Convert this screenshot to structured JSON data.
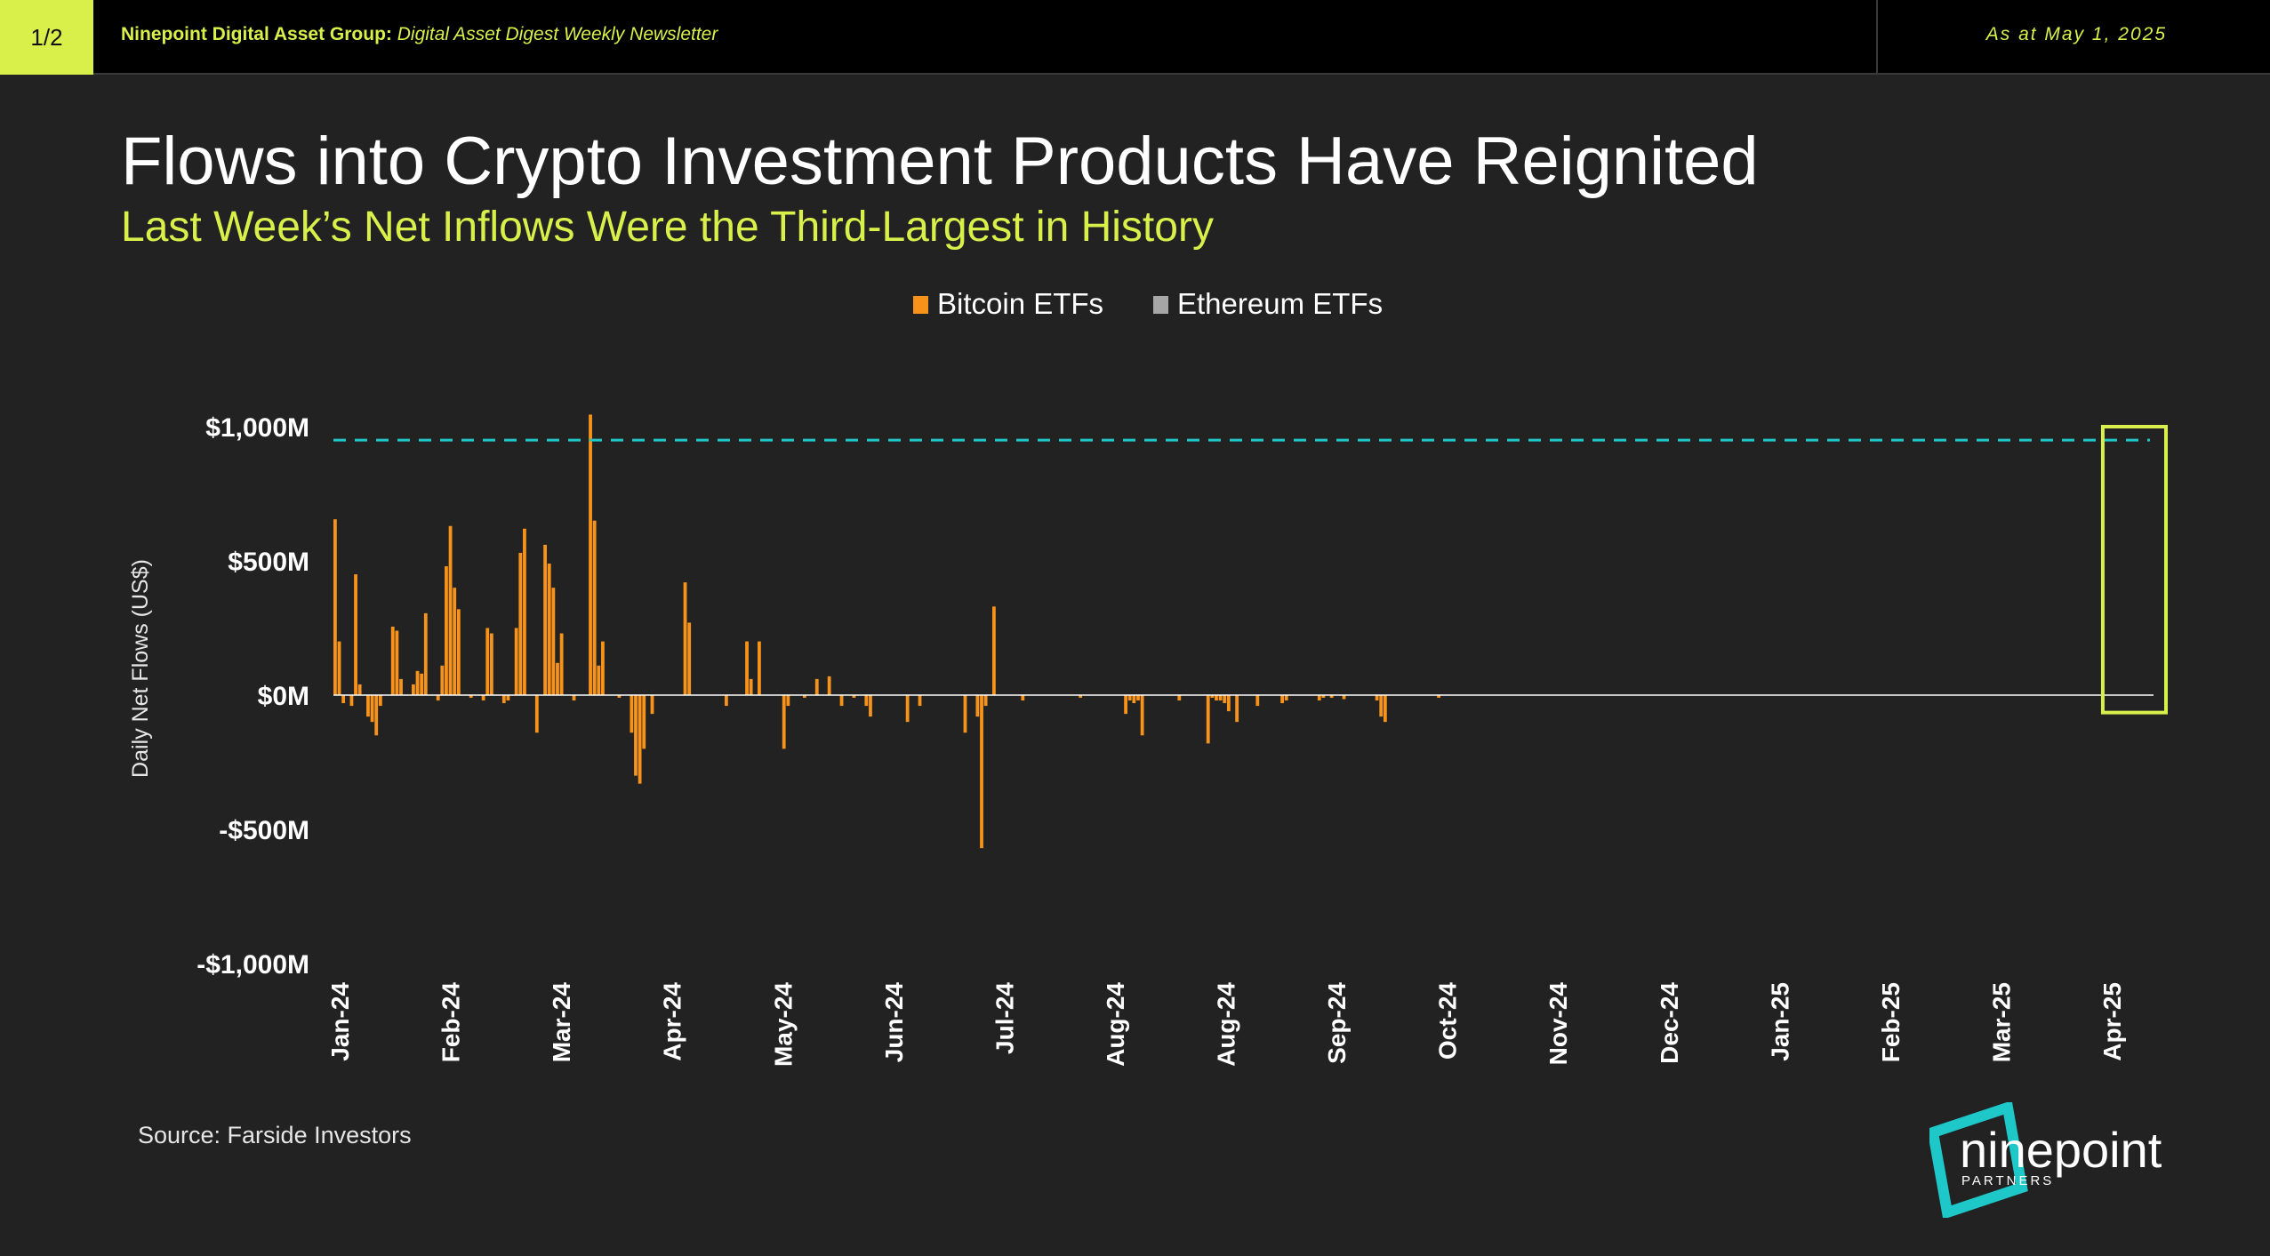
{
  "header": {
    "page_indicator": "1/2",
    "org": "Ninepoint Digital Asset Group:",
    "newsletter": "Digital Asset Digest Weekly Newsletter",
    "as_at": "As at May 1, 2025"
  },
  "title": "Flows into Crypto Investment Products Have Reignited",
  "subtitle": "Last Week’s Net Inflows Were the Third-Largest in History",
  "source": "Source: Farside Investors",
  "logo": {
    "name": "ninepoint",
    "tagline": "PARTNERS"
  },
  "colors": {
    "background": "#222222",
    "accent": "#d9f04b",
    "bitcoin": "#f7931a",
    "ethereum": "#a6a6a6",
    "reference_line": "#1fc8c8",
    "logo_frame": "#1fc8c8"
  },
  "chart_data": {
    "type": "bar",
    "stacked": true,
    "ylabel": "Daily Net Flows (US$)",
    "ylim": [
      -1000,
      1000
    ],
    "y_ticks": [
      1000,
      500,
      0,
      -500,
      -1000
    ],
    "y_tick_labels": [
      "$1,000M",
      "$500M",
      "$0M",
      "-$500M",
      "-$1,000M"
    ],
    "x_tick_labels": [
      "Jan-24",
      "Feb-24",
      "Mar-24",
      "Apr-24",
      "May-24",
      "Jun-24",
      "Jul-24",
      "Aug-24",
      "Aug-24",
      "Sep-24",
      "Oct-24",
      "Nov-24",
      "Dec-24",
      "Jan-25",
      "Feb-25",
      "Mar-25",
      "Apr-25"
    ],
    "legend": [
      "Bitcoin ETFs",
      "Ethereum ETFs"
    ],
    "legend_position": "top-center",
    "reference_line": 950,
    "highlight_last_trading_days": 8,
    "series": [
      {
        "name": "Bitcoin ETFs",
        "values": [
          655,
          200,
          -30,
          0,
          -40,
          450,
          40,
          0,
          -80,
          -100,
          -150,
          -40,
          0,
          0,
          255,
          240,
          60,
          0,
          0,
          40,
          90,
          80,
          305,
          0,
          0,
          -20,
          110,
          480,
          630,
          400,
          320,
          0,
          0,
          -10,
          0,
          0,
          -20,
          250,
          230,
          0,
          0,
          -30,
          -20,
          0,
          250,
          530,
          620,
          0,
          0,
          -140,
          0,
          560,
          490,
          400,
          120,
          230,
          0,
          0,
          -20,
          0,
          0,
          0,
          1045,
          650,
          110,
          200,
          0,
          0,
          0,
          -10,
          0,
          0,
          -140,
          -300,
          -330,
          -200,
          0,
          -70,
          0,
          0,
          0,
          0,
          0,
          0,
          0,
          420,
          270,
          0,
          0,
          0,
          0,
          0,
          0,
          0,
          0,
          -40,
          0,
          0,
          0,
          0,
          200,
          60,
          0,
          200,
          0,
          0,
          0,
          0,
          0,
          -200,
          -40,
          0,
          0,
          0,
          -10,
          0,
          0,
          60,
          0,
          0,
          70,
          0,
          0,
          -40,
          0,
          0,
          -10,
          0,
          0,
          -40,
          -80,
          0,
          0,
          0,
          0,
          0,
          0,
          0,
          0,
          -100,
          0,
          0,
          -40,
          0,
          0,
          0,
          0,
          0,
          0,
          0,
          0,
          0,
          0,
          -140,
          0,
          0,
          -80,
          -570,
          -40,
          0,
          330,
          0,
          0,
          0,
          0,
          0,
          0,
          -20,
          0,
          0,
          0,
          0,
          0,
          0,
          0,
          0,
          0,
          0,
          0,
          0,
          0,
          -10,
          0,
          0,
          0,
          0,
          0,
          0,
          0,
          0,
          0,
          0,
          -70,
          -20,
          -30,
          -20,
          -150,
          0,
          0,
          0,
          0,
          0,
          0,
          0,
          0,
          -20,
          0,
          0,
          0,
          0,
          0,
          0,
          -180,
          -10,
          -20,
          -20,
          -30,
          -60,
          0,
          -100,
          0,
          0,
          0,
          0,
          -40,
          0,
          0,
          0,
          0,
          0,
          -30,
          -20,
          0,
          0,
          0,
          0,
          0,
          0,
          0,
          -20,
          -10,
          0,
          -10,
          0,
          0,
          -15,
          0,
          0,
          0,
          0,
          0,
          0,
          0,
          -20,
          -80,
          -100,
          0,
          0,
          0,
          0,
          0,
          0,
          0,
          0,
          0,
          0,
          0,
          0,
          -10,
          0,
          0,
          0,
          0,
          0,
          0,
          0,
          0,
          0,
          0,
          0,
          0,
          0,
          0,
          0,
          0,
          0,
          0,
          0,
          0,
          0,
          0,
          0,
          0,
          0,
          0,
          0,
          0,
          0,
          0,
          0,
          0,
          0,
          0,
          0,
          0,
          0,
          0,
          0,
          0,
          0,
          0,
          0,
          0,
          0,
          0,
          0,
          0,
          0,
          0,
          0,
          0,
          0,
          0,
          0,
          0,
          0,
          0,
          0,
          0,
          0,
          0,
          0,
          0,
          0,
          0,
          0,
          0,
          0,
          0,
          0,
          0,
          0,
          0,
          0,
          0,
          0,
          0,
          0,
          0,
          0,
          0,
          0,
          0,
          0,
          0,
          0,
          0,
          0,
          0,
          0,
          0,
          0,
          0,
          0,
          0,
          0,
          0,
          0,
          0,
          0,
          0,
          0,
          0,
          0,
          0,
          0,
          0,
          0,
          0,
          0,
          0,
          0,
          0,
          0,
          0,
          0,
          0,
          0,
          0,
          0,
          0,
          0,
          0,
          0,
          0,
          0,
          0,
          0,
          0,
          0,
          0,
          0,
          0,
          0,
          0,
          0,
          0,
          0,
          0,
          0,
          0,
          0,
          0,
          0,
          0,
          0,
          0,
          0,
          0,
          0,
          0,
          0,
          0,
          0,
          0,
          0,
          0,
          0,
          0,
          0,
          0,
          0,
          0,
          0,
          0,
          0,
          0,
          0,
          0,
          0,
          0,
          0
        ]
      },
      {
        "name": "Ethereum ETFs",
        "values": []
      }
    ]
  }
}
